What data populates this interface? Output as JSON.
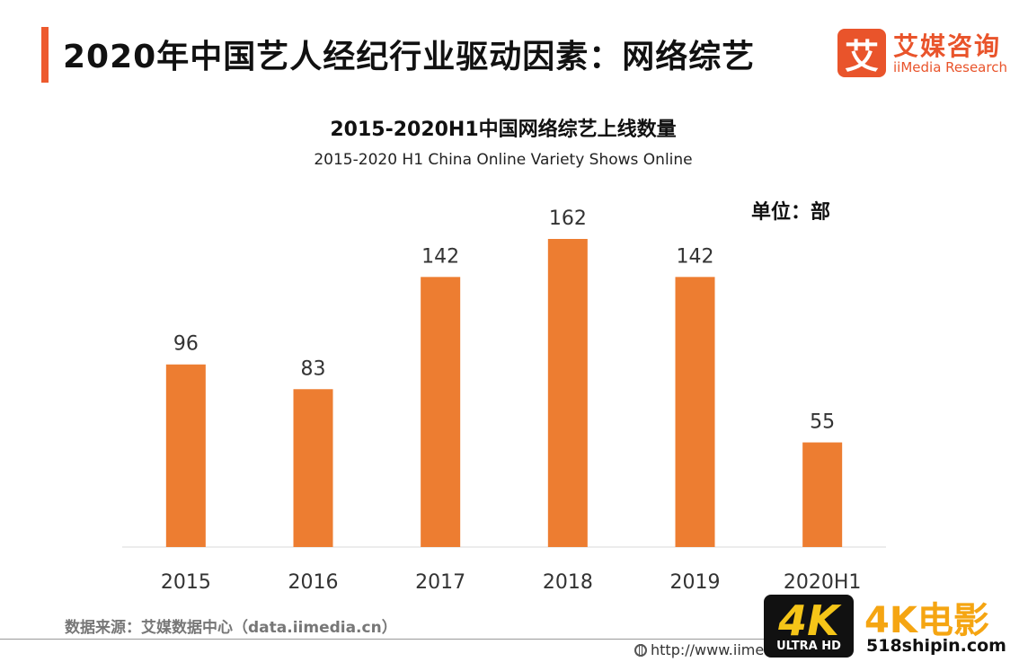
{
  "header": {
    "title": "2020年中国艺人经纪行业驱动因素：网络综艺",
    "logo_mark": "艾",
    "logo_cn": "艾媒咨询",
    "logo_en": "iiMedia Research"
  },
  "chart_data": {
    "type": "bar",
    "title": "2015-2020H1中国网络综艺上线数量",
    "subtitle": "2015-2020 H1 China Online Variety Shows Online",
    "unit": "单位：部",
    "categories": [
      "2015",
      "2016",
      "2017",
      "2018",
      "2019",
      "2020H1"
    ],
    "values": [
      96,
      83,
      142,
      162,
      142,
      55
    ],
    "ylim": [
      0,
      180
    ],
    "bar_color": "#ED7D31",
    "grid": false,
    "legend": "none"
  },
  "footer": {
    "source": "数据来源：艾媒数据中心（data.iimedia.cn）",
    "url": "http://www.iime"
  },
  "watermark": {
    "badge_main": "4K",
    "badge_sub": "ULTRA HD",
    "text": "4K电影",
    "url": "518shipin.com"
  }
}
